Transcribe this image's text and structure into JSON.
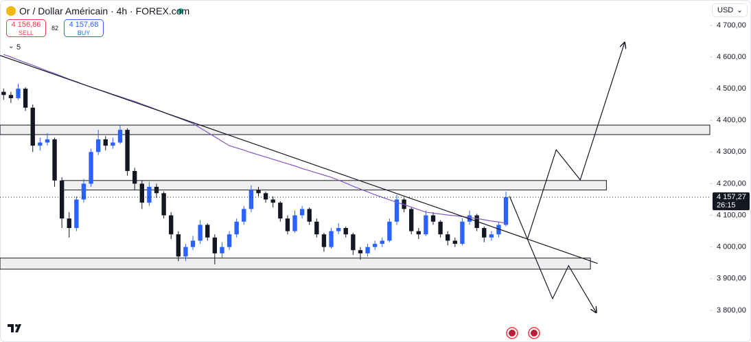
{
  "header": {
    "title": "Or / Dollar Américain · 4h · FOREX.com",
    "sell_price": "4 156,86",
    "sell_label": "SELL",
    "spread": 82,
    "buy_price": "4 157,68",
    "buy_label": "BUY",
    "indicators": 5,
    "currency": "USD"
  },
  "chart_data": {
    "type": "candlestick",
    "ylim": [
      3700,
      4780
    ],
    "xlim": [
      -0.5,
      97
    ],
    "yticks": [
      {
        "value": 3800,
        "label": "3 800,00"
      },
      {
        "value": 3900,
        "label": "3 900,00"
      },
      {
        "value": 4000,
        "label": "4 000,00"
      },
      {
        "value": 4100,
        "label": "4 100,00"
      },
      {
        "value": 4200,
        "label": "4 200,00"
      },
      {
        "value": 4300,
        "label": "4 300,00"
      },
      {
        "value": 4400,
        "label": "4 400,00"
      },
      {
        "value": 4500,
        "label": "4 500,00"
      },
      {
        "value": 4600,
        "label": "4 600,00"
      },
      {
        "value": 4700,
        "label": "4 700,00"
      }
    ],
    "grid": false,
    "up_color": "#2962ff",
    "down_color": "#131722",
    "candles": [
      [
        4490,
        4500,
        4465,
        4480
      ],
      [
        4480,
        4490,
        4455,
        4470
      ],
      [
        4470,
        4515,
        4465,
        4500
      ],
      [
        4500,
        4505,
        4430,
        4440
      ],
      [
        4440,
        4450,
        4300,
        4320
      ],
      [
        4320,
        4345,
        4305,
        4330
      ],
      [
        4330,
        4360,
        4320,
        4340
      ],
      [
        4340,
        4345,
        4190,
        4210
      ],
      [
        4210,
        4220,
        4060,
        4090
      ],
      [
        4090,
        4110,
        4030,
        4060
      ],
      [
        4060,
        4160,
        4050,
        4150
      ],
      [
        4150,
        4215,
        4140,
        4200
      ],
      [
        4200,
        4310,
        4190,
        4300
      ],
      [
        4300,
        4370,
        4290,
        4340
      ],
      [
        4340,
        4350,
        4305,
        4320
      ],
      [
        4320,
        4345,
        4310,
        4330
      ],
      [
        4330,
        4385,
        4325,
        4370
      ],
      [
        4370,
        4375,
        4225,
        4240
      ],
      [
        4240,
        4250,
        4180,
        4200
      ],
      [
        4200,
        4210,
        4120,
        4140
      ],
      [
        4140,
        4205,
        4130,
        4190
      ],
      [
        4190,
        4200,
        4155,
        4170
      ],
      [
        4170,
        4175,
        4090,
        4100
      ],
      [
        4100,
        4110,
        4025,
        4040
      ],
      [
        4040,
        4050,
        3955,
        3970
      ],
      [
        3970,
        4010,
        3955,
        4000
      ],
      [
        4000,
        4035,
        3990,
        4020
      ],
      [
        4020,
        4085,
        4010,
        4070
      ],
      [
        4070,
        4075,
        4020,
        4030
      ],
      [
        4030,
        4040,
        3945,
        3980
      ],
      [
        3980,
        4015,
        3965,
        4000
      ],
      [
        4000,
        4050,
        3990,
        4040
      ],
      [
        4040,
        4090,
        4030,
        4080
      ],
      [
        4080,
        4130,
        4070,
        4120
      ],
      [
        4120,
        4195,
        4110,
        4180
      ],
      [
        4180,
        4190,
        4160,
        4170
      ],
      [
        4170,
        4175,
        4140,
        4150
      ],
      [
        4150,
        4160,
        4125,
        4140
      ],
      [
        4140,
        4145,
        4080,
        4090
      ],
      [
        4090,
        4100,
        4040,
        4050
      ],
      [
        4050,
        4115,
        4045,
        4100
      ],
      [
        4100,
        4130,
        4090,
        4120
      ],
      [
        4120,
        4125,
        4070,
        4080
      ],
      [
        4080,
        4090,
        4030,
        4040
      ],
      [
        4040,
        4045,
        3985,
        4000
      ],
      [
        4000,
        4060,
        3995,
        4050
      ],
      [
        4050,
        4075,
        4040,
        4060
      ],
      [
        4060,
        4065,
        4030,
        4040
      ],
      [
        4040,
        4045,
        3975,
        3990
      ],
      [
        3990,
        4000,
        3960,
        3980
      ],
      [
        3980,
        4010,
        3970,
        4000
      ],
      [
        4000,
        4020,
        3990,
        4010
      ],
      [
        4010,
        4030,
        4000,
        4020
      ],
      [
        4020,
        4090,
        4015,
        4080
      ],
      [
        4080,
        4165,
        4070,
        4150
      ],
      [
        4150,
        4155,
        4110,
        4120
      ],
      [
        4120,
        4125,
        4040,
        4050
      ],
      [
        4050,
        4060,
        4025,
        4040
      ],
      [
        4040,
        4115,
        4035,
        4100
      ],
      [
        4100,
        4110,
        4070,
        4080
      ],
      [
        4080,
        4085,
        4030,
        4040
      ],
      [
        4040,
        4050,
        4005,
        4020
      ],
      [
        4020,
        4030,
        4000,
        4010
      ],
      [
        4010,
        4090,
        4005,
        4080
      ],
      [
        4080,
        4115,
        4070,
        4100
      ],
      [
        4100,
        4105,
        4050,
        4060
      ],
      [
        4060,
        4065,
        4015,
        4030
      ],
      [
        4030,
        4050,
        4020,
        4040
      ],
      [
        4040,
        4080,
        4030,
        4070
      ],
      [
        4070,
        4175,
        4065,
        4157.27
      ]
    ],
    "moving_average": {
      "color": "#7e57c2",
      "values": [
        4608,
        4600,
        4591,
        4582,
        4574,
        4565,
        4556,
        4548,
        4539,
        4530,
        4522,
        4513,
        4505,
        4497,
        4490,
        4482,
        4475,
        4467,
        4460,
        4451,
        4443,
        4434,
        4425,
        4416,
        4408,
        4399,
        4390,
        4376,
        4362,
        4348,
        4334,
        4320,
        4313,
        4306,
        4298,
        4291,
        4284,
        4277,
        4270,
        4263,
        4256,
        4248,
        4241,
        4234,
        4227,
        4220,
        4211,
        4202,
        4192,
        4183,
        4174,
        4165,
        4157,
        4149,
        4141,
        4134,
        4126,
        4118,
        4110,
        4107,
        4104,
        4101,
        4099,
        4096,
        4093,
        4090,
        4086,
        4082,
        4079,
        4075
      ]
    },
    "zones": [
      {
        "x": [
          -0.5,
          97
        ],
        "y": [
          4355,
          4385
        ]
      },
      {
        "x": [
          8,
          82.8
        ],
        "y": [
          4180,
          4210
        ]
      },
      {
        "x": [
          -0.5,
          80.6
        ],
        "y": [
          3930,
          3965
        ]
      }
    ],
    "trendline": {
      "color": "#131722",
      "x": [
        -0.5,
        81.6
      ],
      "y": [
        4605,
        3948
      ]
    },
    "projections": [
      {
        "x": [
          69.5,
          71.95,
          75.9,
          79.2,
          85.3
        ],
        "y": [
          4160,
          4025,
          4307,
          4212,
          4646
        ]
      },
      {
        "x": [
          71.95,
          75.4,
          77.6,
          81.4
        ],
        "y": [
          4025,
          3837,
          3941,
          3793
        ]
      }
    ],
    "last_price": {
      "value": 4157.27,
      "label": "4 157,27"
    },
    "countdown": "26:15"
  }
}
